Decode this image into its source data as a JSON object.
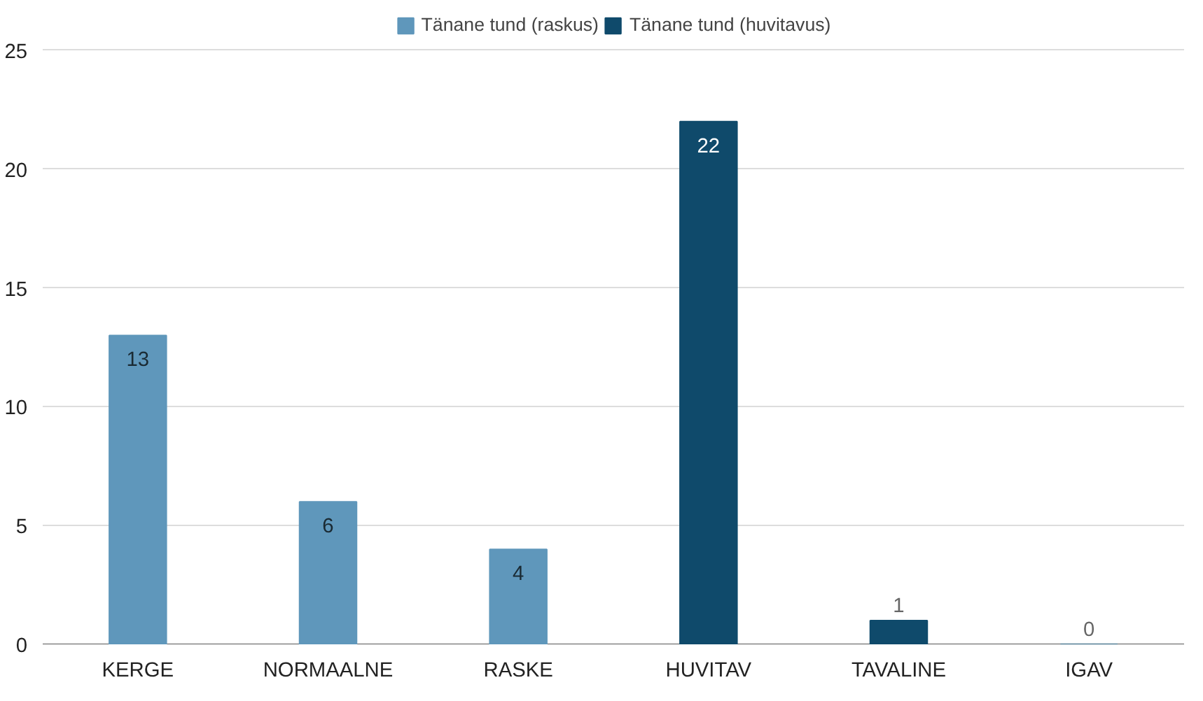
{
  "chart_data": {
    "type": "bar",
    "categories": [
      "KERGE",
      "NORMAALNE",
      "RASKE",
      "HUVITAV",
      "TAVALINE",
      "IGAV"
    ],
    "series": [
      {
        "name": "Tänane tund (raskus)",
        "color": "#5f97bb",
        "values": [
          13,
          6,
          4,
          null,
          null,
          null
        ]
      },
      {
        "name": "Tänane tund (huvitavus)",
        "color": "#0f4a6b",
        "values": [
          null,
          null,
          null,
          22,
          1,
          0
        ]
      }
    ],
    "ylim": [
      0,
      26.5
    ],
    "yticks": [
      0,
      5,
      10,
      15,
      20,
      25
    ],
    "grid": "y",
    "legend": "top",
    "data_labels": true
  }
}
